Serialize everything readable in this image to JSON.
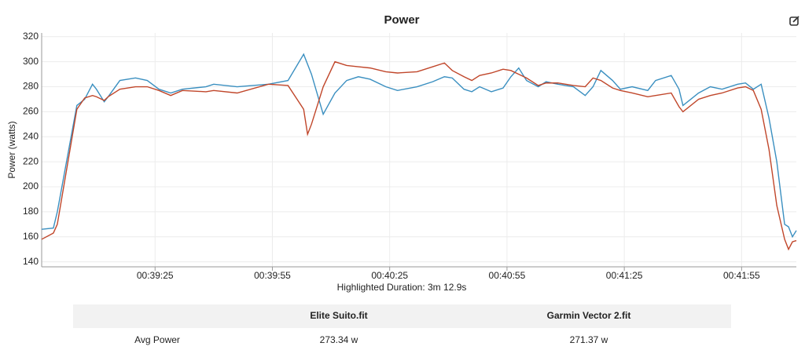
{
  "chart_data": {
    "type": "line",
    "title": "Power",
    "ylabel": "Power (watts)",
    "x": [
      2336,
      2339,
      2340,
      2345,
      2347,
      2349,
      2350,
      2352,
      2353,
      2356,
      2360,
      2363,
      2366,
      2369,
      2372,
      2378,
      2380,
      2386,
      2394,
      2399,
      2403,
      2404,
      2405,
      2408,
      2411,
      2414,
      2417,
      2420,
      2424,
      2427,
      2432,
      2436,
      2439,
      2441,
      2444,
      2446,
      2448,
      2451,
      2454,
      2456,
      2458,
      2460,
      2463,
      2465,
      2468,
      2472,
      2475,
      2477,
      2479,
      2482,
      2484,
      2487,
      2491,
      2493,
      2497,
      2499,
      2500,
      2504,
      2507,
      2510,
      2514,
      2516,
      2518,
      2520,
      2522,
      2524,
      2526,
      2527,
      2528,
      2529
    ],
    "series": [
      {
        "color": "#3a8fc0",
        "values": [
          166,
          167,
          180,
          265,
          270,
          282,
          278,
          268,
          272,
          285,
          287,
          285,
          278,
          275,
          278,
          280,
          282,
          280,
          282,
          285,
          306,
          298,
          290,
          258,
          275,
          285,
          288,
          286,
          280,
          277,
          280,
          284,
          288,
          287,
          278,
          276,
          280,
          276,
          279,
          288,
          295,
          285,
          280,
          284,
          282,
          280,
          273,
          280,
          293,
          285,
          278,
          280,
          277,
          285,
          289,
          278,
          265,
          275,
          280,
          278,
          282,
          283,
          278,
          282,
          255,
          220,
          170,
          168,
          160,
          165
        ]
      },
      {
        "color": "#c0462a",
        "values": [
          158,
          163,
          170,
          262,
          271,
          273,
          272,
          269,
          272,
          278,
          280,
          280,
          277,
          273,
          277,
          276,
          277,
          275,
          282,
          281,
          262,
          242,
          250,
          280,
          300,
          297,
          296,
          295,
          292,
          291,
          292,
          296,
          299,
          293,
          288,
          285,
          289,
          291,
          294,
          293,
          290,
          287,
          281,
          283,
          283,
          281,
          280,
          287,
          285,
          279,
          277,
          275,
          272,
          273,
          275,
          264,
          260,
          270,
          273,
          275,
          279,
          280,
          277,
          262,
          230,
          185,
          158,
          150,
          156,
          157
        ]
      }
    ],
    "xlim": [
      2336,
      2529
    ],
    "ylim": [
      136,
      323
    ],
    "xticks": [
      {
        "value": 2365,
        "label": "00:39:25"
      },
      {
        "value": 2395,
        "label": "00:39:55"
      },
      {
        "value": 2425,
        "label": "00:40:25"
      },
      {
        "value": 2455,
        "label": "00:40:55"
      },
      {
        "value": 2485,
        "label": "00:41:25"
      },
      {
        "value": 2515,
        "label": "00:41:55"
      }
    ],
    "yticks": [
      140,
      160,
      180,
      200,
      220,
      240,
      260,
      280,
      300,
      320
    ],
    "grid": true,
    "annotation": "Highlighted Duration: 3m 12.9s"
  },
  "table": {
    "columns": [
      "Elite Suito.fit",
      "Garmin Vector 2.fit"
    ],
    "rows": [
      [
        "Avg Power",
        "273.34 w",
        "271.37 w"
      ]
    ]
  }
}
